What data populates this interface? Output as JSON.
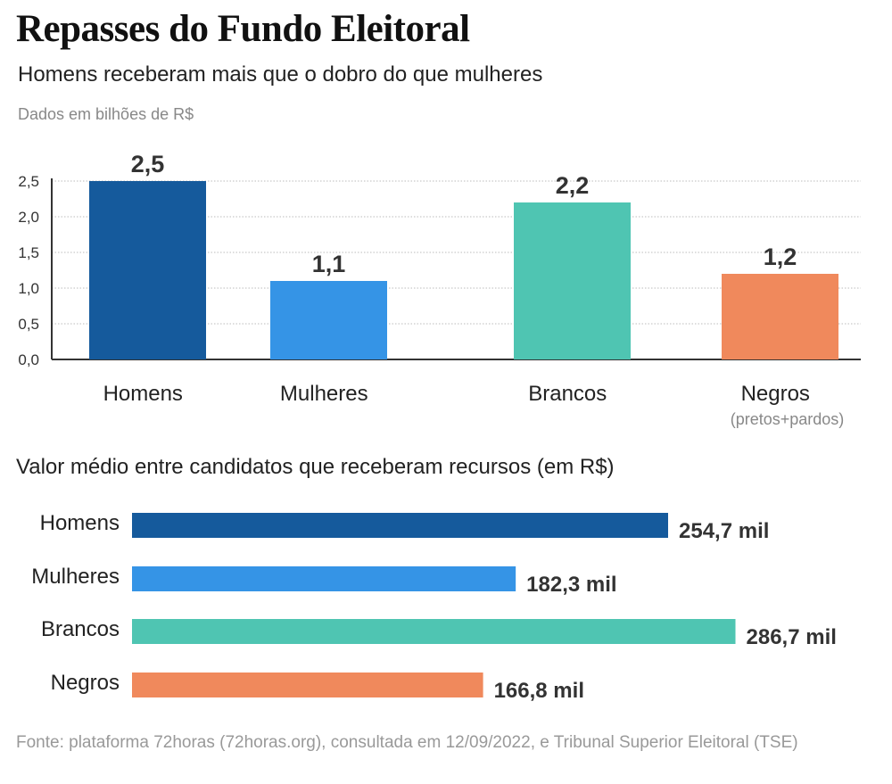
{
  "header": {
    "title": "Repasses do Fundo Eleitoral",
    "subtitle": "Homens receberam mais que o dobro do que mulheres",
    "unit_note": "Dados em bilhões de R$"
  },
  "chart_data": [
    {
      "type": "bar",
      "title": "",
      "ylabel": "Dados em bilhões de R$",
      "ylim": [
        0,
        2.5
      ],
      "yticks": [
        "0,0",
        "0,5",
        "1,0",
        "1,5",
        "2,0",
        "2,5"
      ],
      "grid": true,
      "categories": [
        "Homens",
        "Mulheres",
        "Brancos",
        "Negros"
      ],
      "category_sublabels": [
        "",
        "",
        "",
        "(pretos+pardos)"
      ],
      "values": [
        2.5,
        1.1,
        2.2,
        1.2
      ],
      "data_labels": [
        "2,5",
        "1,1",
        "2,2",
        "1,2"
      ],
      "colors": [
        "#155a9c",
        "#3594e6",
        "#4fc5b2",
        "#f0895c"
      ]
    },
    {
      "type": "bar",
      "orientation": "horizontal",
      "title": "Valor médio entre candidatos que receberam recursos (em R$)",
      "categories": [
        "Homens",
        "Mulheres",
        "Brancos",
        "Negros"
      ],
      "values": [
        254.7,
        182.3,
        286.7,
        166.8
      ],
      "data_labels": [
        "254,7 mil",
        "182,3 mil",
        "286,7 mil",
        "166,8 mil"
      ],
      "colors": [
        "#155a9c",
        "#3594e6",
        "#4fc5b2",
        "#f0895c"
      ]
    }
  ],
  "footer": {
    "source": "Fonte: plataforma 72horas (72horas.org), consultada em 12/09/2022, e Tribunal Superior Eleitoral (TSE)"
  }
}
